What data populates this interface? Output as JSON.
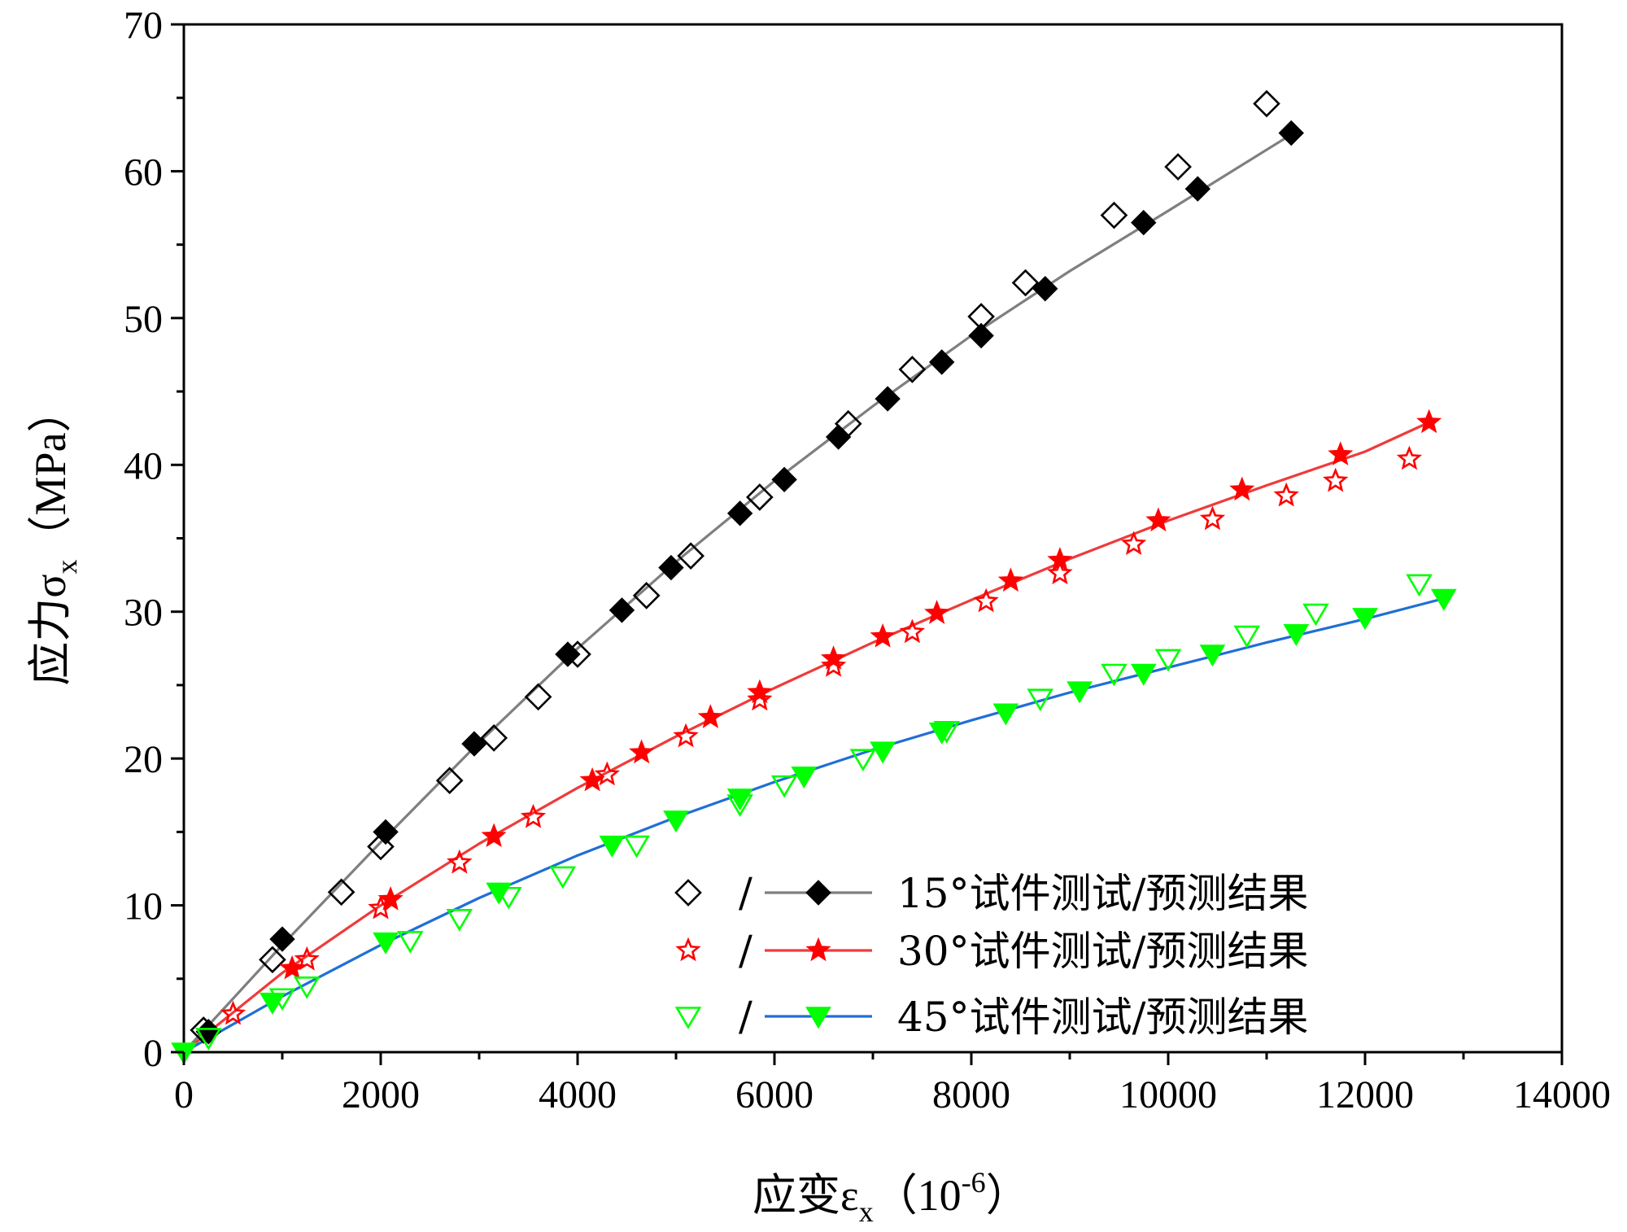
{
  "chart_data": {
    "type": "scatter",
    "xlabel_main": "应变ε",
    "xlabel_sub": "x",
    "xlabel_unit_open": "（10",
    "xlabel_unit_sup": "-6",
    "xlabel_unit_close": "）",
    "ylabel_main": "应力σ",
    "ylabel_sub": "x",
    "ylabel_unit": "（MPa）",
    "xlim": [
      0,
      14000
    ],
    "ylim": [
      0,
      70
    ],
    "x_ticks": [
      0,
      2000,
      4000,
      6000,
      8000,
      10000,
      12000,
      14000
    ],
    "x_tick_labels": [
      "0",
      "2000",
      "4000",
      "6000",
      "8000",
      "10000",
      "12000",
      "14000"
    ],
    "y_ticks": [
      0,
      10,
      20,
      30,
      40,
      50,
      60,
      70
    ],
    "y_tick_labels": [
      "0",
      "10",
      "20",
      "30",
      "40",
      "50",
      "60",
      "70"
    ],
    "grid": false,
    "legend_position": "bottom-right",
    "legend_separator": "/",
    "series": [
      {
        "name": "15°试件测试/预测结果",
        "color": "#000000",
        "line_color": "#7f7f7f",
        "test_marker": "diamond-open",
        "pred_marker": "diamond-filled",
        "test": [
          [
            200,
            1.5
          ],
          [
            900,
            6.3
          ],
          [
            1600,
            10.9
          ],
          [
            2000,
            14.0
          ],
          [
            2700,
            18.5
          ],
          [
            3150,
            21.4
          ],
          [
            3600,
            24.2
          ],
          [
            4000,
            27.1
          ],
          [
            4700,
            31.1
          ],
          [
            5150,
            33.8
          ],
          [
            5850,
            37.8
          ],
          [
            6750,
            42.8
          ],
          [
            7400,
            46.5
          ],
          [
            8100,
            50.1
          ],
          [
            8550,
            52.4
          ],
          [
            9450,
            57.0
          ],
          [
            10100,
            60.3
          ],
          [
            11000,
            64.6
          ]
        ],
        "pred": [
          [
            250,
            1.4
          ],
          [
            1000,
            7.7
          ],
          [
            2050,
            15.0
          ],
          [
            2950,
            21.0
          ],
          [
            3900,
            27.1
          ],
          [
            4450,
            30.1
          ],
          [
            4950,
            33.0
          ],
          [
            5650,
            36.7
          ],
          [
            6100,
            39.0
          ],
          [
            6650,
            41.9
          ],
          [
            7150,
            44.5
          ],
          [
            7700,
            47.0
          ],
          [
            8100,
            48.8
          ],
          [
            8750,
            52.0
          ],
          [
            9750,
            56.5
          ],
          [
            10300,
            58.8
          ],
          [
            11250,
            62.6
          ]
        ],
        "fit": [
          [
            0,
            0
          ],
          [
            1000,
            7.3
          ],
          [
            2000,
            14.3
          ],
          [
            3000,
            21.1
          ],
          [
            4000,
            27.5
          ],
          [
            5000,
            33.4
          ],
          [
            6000,
            38.9
          ],
          [
            7000,
            44.0
          ],
          [
            8000,
            48.8
          ],
          [
            9000,
            53.2
          ],
          [
            10000,
            57.3
          ],
          [
            11250,
            62.5
          ]
        ]
      },
      {
        "name": "30°试件测试/预测结果",
        "color": "#ff0000",
        "line_color": "#ef3b3b",
        "test_marker": "star-open",
        "pred_marker": "star-filled",
        "test": [
          [
            500,
            2.6
          ],
          [
            1250,
            6.3
          ],
          [
            2000,
            9.8
          ],
          [
            2800,
            12.9
          ],
          [
            3550,
            16.0
          ],
          [
            4300,
            18.9
          ],
          [
            5100,
            21.5
          ],
          [
            5850,
            24.0
          ],
          [
            6600,
            26.3
          ],
          [
            7400,
            28.6
          ],
          [
            8150,
            30.7
          ],
          [
            8900,
            32.6
          ],
          [
            9650,
            34.6
          ],
          [
            10450,
            36.3
          ],
          [
            11200,
            37.9
          ],
          [
            11700,
            38.9
          ],
          [
            12450,
            40.4
          ]
        ],
        "pred": [
          [
            1100,
            5.7
          ],
          [
            2100,
            10.4
          ],
          [
            3150,
            14.7
          ],
          [
            4150,
            18.5
          ],
          [
            4650,
            20.4
          ],
          [
            5350,
            22.8
          ],
          [
            5850,
            24.5
          ],
          [
            6600,
            26.8
          ],
          [
            7100,
            28.3
          ],
          [
            7650,
            29.9
          ],
          [
            8400,
            32.1
          ],
          [
            8900,
            33.5
          ],
          [
            9900,
            36.2
          ],
          [
            10750,
            38.3
          ],
          [
            11750,
            40.7
          ],
          [
            12650,
            42.9
          ]
        ],
        "fit": [
          [
            0,
            0
          ],
          [
            1000,
            5.4
          ],
          [
            2000,
            10.0
          ],
          [
            3000,
            14.2
          ],
          [
            4000,
            18.0
          ],
          [
            5000,
            21.5
          ],
          [
            6000,
            24.8
          ],
          [
            7000,
            27.9
          ],
          [
            8000,
            30.8
          ],
          [
            9000,
            33.6
          ],
          [
            10000,
            36.2
          ],
          [
            11000,
            38.6
          ],
          [
            12000,
            40.9
          ],
          [
            12650,
            42.9
          ]
        ]
      },
      {
        "name": "45°试件测试/预测结果",
        "color": "#00ff00",
        "line_color": "#1f6fd6",
        "test_marker": "triangle-down-open",
        "pred_marker": "triangle-down-filled",
        "test": [
          [
            250,
            1.0
          ],
          [
            1000,
            3.7
          ],
          [
            1250,
            4.5
          ],
          [
            2300,
            7.6
          ],
          [
            2800,
            9.1
          ],
          [
            3300,
            10.6
          ],
          [
            3850,
            12.0
          ],
          [
            4600,
            14.1
          ],
          [
            5650,
            16.9
          ],
          [
            6100,
            18.2
          ],
          [
            6900,
            20.0
          ],
          [
            7750,
            21.9
          ],
          [
            8700,
            24.1
          ],
          [
            9450,
            25.8
          ],
          [
            10000,
            26.8
          ],
          [
            10800,
            28.4
          ],
          [
            11500,
            29.9
          ],
          [
            12550,
            31.9
          ]
        ],
        "pred": [
          [
            0,
            0
          ],
          [
            900,
            3.4
          ],
          [
            2050,
            7.5
          ],
          [
            3200,
            10.9
          ],
          [
            4350,
            14.1
          ],
          [
            5000,
            15.8
          ],
          [
            5650,
            17.3
          ],
          [
            6300,
            18.8
          ],
          [
            7100,
            20.5
          ],
          [
            7700,
            21.8
          ],
          [
            8350,
            23.1
          ],
          [
            9100,
            24.6
          ],
          [
            9750,
            25.8
          ],
          [
            10450,
            27.1
          ],
          [
            11300,
            28.5
          ],
          [
            12000,
            29.6
          ],
          [
            12800,
            30.9
          ]
        ],
        "fit": [
          [
            0,
            0
          ],
          [
            1000,
            3.8
          ],
          [
            2000,
            7.3
          ],
          [
            3000,
            10.5
          ],
          [
            4000,
            13.4
          ],
          [
            5000,
            16.0
          ],
          [
            6000,
            18.4
          ],
          [
            7000,
            20.6
          ],
          [
            8000,
            22.6
          ],
          [
            9000,
            24.5
          ],
          [
            10000,
            26.2
          ],
          [
            11000,
            27.9
          ],
          [
            12000,
            29.5
          ],
          [
            12800,
            30.9
          ]
        ]
      }
    ]
  }
}
